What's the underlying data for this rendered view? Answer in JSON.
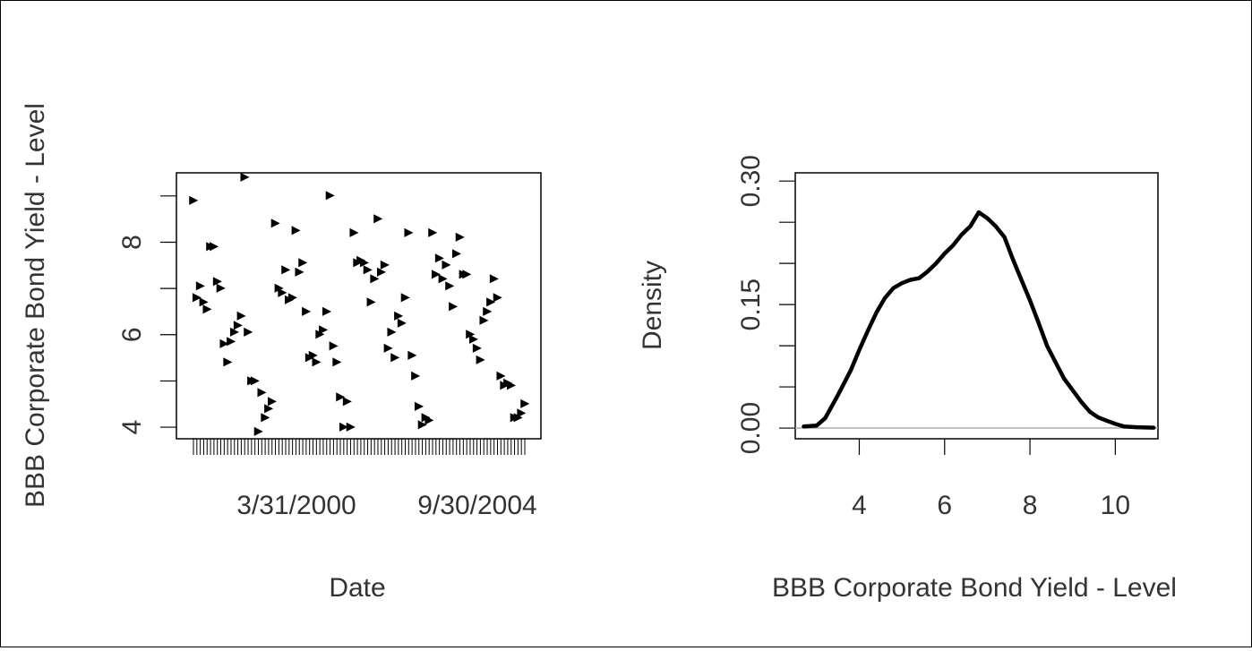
{
  "chart_data": [
    {
      "type": "scatter",
      "xlabel": "Date",
      "ylabel": "BBB Corporate Bond Yield - Level",
      "x_tick_labels": [
        "3/31/2000",
        "9/30/2004"
      ],
      "y_ticks": [
        4,
        5,
        6,
        7,
        8,
        9
      ],
      "y_tick_labels": [
        "4",
        "",
        "6",
        "",
        "8",
        ""
      ],
      "ylim": [
        3.75,
        9.5
      ],
      "grid": false,
      "x_is_categorical_dates": true,
      "values": [
        8.95,
        6.85,
        7.1,
        6.75,
        6.6,
        7.95,
        7.95,
        7.2,
        7.05,
        5.85,
        5.45,
        5.9,
        6.1,
        6.25,
        6.45,
        9.45,
        6.1,
        5.05,
        5.05,
        3.95,
        4.8,
        4.25,
        4.45,
        4.6,
        8.45,
        7.05,
        6.95,
        7.45,
        6.8,
        6.85,
        8.3,
        7.4,
        7.6,
        6.55,
        5.55,
        5.6,
        5.45,
        6.05,
        6.15,
        6.55,
        9.05,
        5.8,
        5.45,
        4.7,
        4.05,
        4.6,
        4.05,
        8.25,
        7.6,
        7.65,
        7.6,
        7.45,
        6.75,
        7.25,
        8.55,
        7.4,
        7.55,
        5.75,
        6.1,
        5.55,
        6.45,
        6.3,
        6.85,
        8.25,
        5.6,
        5.15,
        4.5,
        4.1,
        4.25,
        4.2,
        8.25,
        7.35,
        7.7,
        7.25,
        7.55,
        7.1,
        6.65,
        7.8,
        8.15,
        7.35,
        7.35,
        6.05,
        5.95,
        5.75,
        5.5,
        6.35,
        6.55,
        6.75,
        7.25,
        6.85,
        5.15,
        4.95,
        5.0,
        4.95,
        4.25,
        4.25,
        4.35,
        4.55
      ]
    },
    {
      "type": "line",
      "title": "",
      "xlabel": "BBB Corporate Bond Yield - Level",
      "ylabel": "Density",
      "x_ticks": [
        4,
        6,
        8,
        10
      ],
      "y_ticks": [
        0.0,
        0.05,
        0.1,
        0.15,
        0.2,
        0.25,
        0.3
      ],
      "y_tick_labels": [
        "0.00",
        "",
        "",
        "0.15",
        "",
        "",
        "0.30"
      ],
      "xlim": [
        2.5,
        11.0
      ],
      "ylim": [
        -0.013,
        0.31
      ],
      "baseline": 0,
      "grid": false,
      "x": [
        2.7,
        3.0,
        3.2,
        3.5,
        3.8,
        4.0,
        4.2,
        4.4,
        4.6,
        4.8,
        5.0,
        5.2,
        5.4,
        5.6,
        5.8,
        6.0,
        6.2,
        6.4,
        6.6,
        6.8,
        7.0,
        7.2,
        7.4,
        7.6,
        7.8,
        8.0,
        8.2,
        8.4,
        8.6,
        8.8,
        9.0,
        9.2,
        9.4,
        9.6,
        9.8,
        10.0,
        10.2,
        10.5,
        10.9
      ],
      "y": [
        0.002,
        0.003,
        0.012,
        0.04,
        0.07,
        0.095,
        0.118,
        0.14,
        0.158,
        0.17,
        0.176,
        0.18,
        0.182,
        0.19,
        0.2,
        0.212,
        0.222,
        0.235,
        0.245,
        0.262,
        0.255,
        0.245,
        0.232,
        0.205,
        0.18,
        0.155,
        0.128,
        0.1,
        0.08,
        0.06,
        0.046,
        0.032,
        0.02,
        0.013,
        0.009,
        0.005,
        0.002,
        0.001,
        0.0005
      ]
    }
  ]
}
